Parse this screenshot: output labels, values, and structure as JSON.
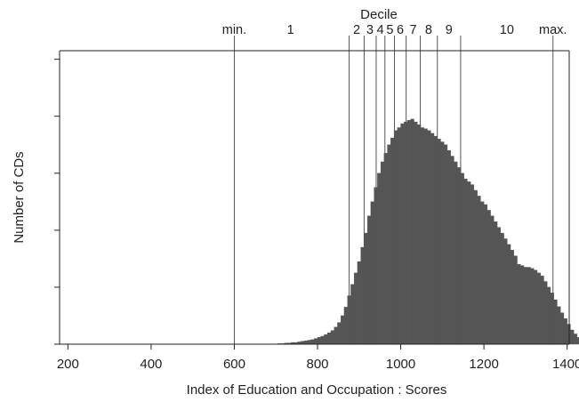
{
  "chart_data": {
    "type": "bar",
    "title": "Decile",
    "xlabel": "Index of Education and Occupation : Scores",
    "ylabel": "Number of CDs",
    "xlim": [
      180,
      1405
    ],
    "xticks": [
      200,
      400,
      600,
      800,
      1000,
      1200,
      1400
    ],
    "yticks_unlabeled": [
      0,
      1,
      2,
      3,
      4,
      5
    ],
    "ylim": [
      0,
      5.15
    ],
    "grid": false,
    "bar_color": "#555555",
    "bin_width": 8,
    "histogram": {
      "x_start": 600,
      "values": [
        0.0,
        0.0,
        0.0,
        0.0,
        0.0,
        0.0,
        0.0,
        0.0,
        0.0,
        0.0,
        0.0,
        0.0,
        0.0,
        0.01,
        0.01,
        0.02,
        0.02,
        0.03,
        0.03,
        0.04,
        0.05,
        0.06,
        0.07,
        0.08,
        0.1,
        0.12,
        0.14,
        0.17,
        0.2,
        0.24,
        0.3,
        0.38,
        0.5,
        0.65,
        0.85,
        1.05,
        1.25,
        1.45,
        1.7,
        1.95,
        2.25,
        2.5,
        2.75,
        3.0,
        3.2,
        3.35,
        3.5,
        3.62,
        3.75,
        3.8,
        3.87,
        3.9,
        3.93,
        3.95,
        3.9,
        3.85,
        3.8,
        3.78,
        3.75,
        3.7,
        3.65,
        3.6,
        3.55,
        3.5,
        3.4,
        3.3,
        3.2,
        3.1,
        3.0,
        2.9,
        2.85,
        2.8,
        2.7,
        2.6,
        2.5,
        2.45,
        2.35,
        2.25,
        2.15,
        2.05,
        1.95,
        1.85,
        1.75,
        1.65,
        1.55,
        1.4,
        1.38,
        1.35,
        1.35,
        1.33,
        1.3,
        1.25,
        1.2,
        1.1,
        1.0,
        0.9,
        0.78,
        0.66,
        0.55,
        0.45,
        0.35,
        0.25,
        0.18,
        0.12,
        0.08,
        0.05,
        0.03,
        0.02,
        0.01,
        0.01,
        0.0,
        0.0,
        0.0,
        0.0,
        0.0,
        0.0,
        0.0,
        0.0
      ]
    },
    "decile_lines": [
      {
        "label": "min.",
        "x": 600
      },
      {
        "label": "2",
        "x": 876
      },
      {
        "label": "3",
        "x": 912
      },
      {
        "label": "4",
        "x": 941
      },
      {
        "label": "5",
        "x": 962
      },
      {
        "label": "6",
        "x": 985
      },
      {
        "label": "7",
        "x": 1013
      },
      {
        "label": "8",
        "x": 1047
      },
      {
        "label": "9",
        "x": 1088
      },
      {
        "label": "10",
        "x": 1144
      },
      {
        "label": "max.",
        "x": 1366
      }
    ],
    "decile_labels": [
      {
        "label": "min.",
        "x": 600
      },
      {
        "label": "1",
        "x": 735
      },
      {
        "label": "2",
        "x": 894
      },
      {
        "label": "3",
        "x": 926
      },
      {
        "label": "4",
        "x": 951
      },
      {
        "label": "5",
        "x": 974
      },
      {
        "label": "6",
        "x": 999
      },
      {
        "label": "7",
        "x": 1030
      },
      {
        "label": "8",
        "x": 1067
      },
      {
        "label": "9",
        "x": 1116
      },
      {
        "label": "10",
        "x": 1255
      },
      {
        "label": "max.",
        "x": 1366
      }
    ]
  }
}
